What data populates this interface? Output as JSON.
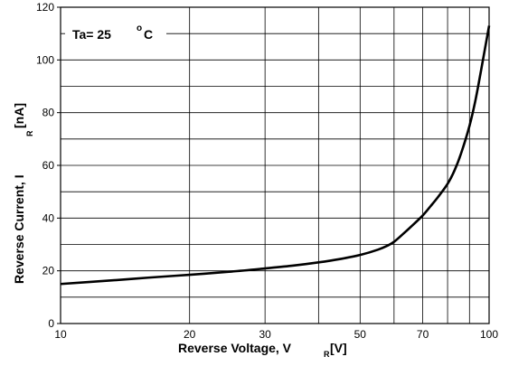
{
  "chart_data": {
    "type": "line",
    "title": "",
    "xlabel": {
      "main": "Reverse Voltage, V",
      "sub": "R",
      "unit": " [V]"
    },
    "ylabel": {
      "main": "Reverse Current, I",
      "sub": "R",
      "unit": " [nA]"
    },
    "xscale": "log",
    "xlim": [
      10,
      100
    ],
    "ylim": [
      0,
      120
    ],
    "x_ticks": [
      10,
      20,
      30,
      50,
      70,
      100
    ],
    "x_tick_labels": [
      "10",
      "20",
      "30",
      "50",
      "70",
      "100"
    ],
    "x_grid": [
      10,
      20,
      30,
      40,
      50,
      60,
      70,
      80,
      90,
      100
    ],
    "y_ticks": [
      0,
      20,
      40,
      60,
      80,
      100,
      120
    ],
    "y_tick_labels": [
      "0",
      "20",
      "40",
      "60",
      "80",
      "100",
      "120"
    ],
    "y_grid_step": 10,
    "grid": true,
    "annotation": {
      "text": "Ta= 25 ",
      "sup": "o",
      "unit": "C"
    },
    "series": [
      {
        "x": [
          10,
          13,
          16,
          20,
          25,
          30,
          35,
          40,
          45,
          50,
          55,
          58,
          60,
          63,
          66,
          70,
          73,
          76,
          80,
          83,
          86,
          90,
          93,
          96,
          100
        ],
        "y": [
          15,
          16.3,
          17.4,
          18.5,
          19.7,
          20.9,
          22,
          23.2,
          24.5,
          26,
          28,
          29.6,
          31,
          34,
          37,
          41,
          44.5,
          48,
          53,
          58,
          64.5,
          75,
          85,
          97,
          113
        ]
      }
    ]
  }
}
